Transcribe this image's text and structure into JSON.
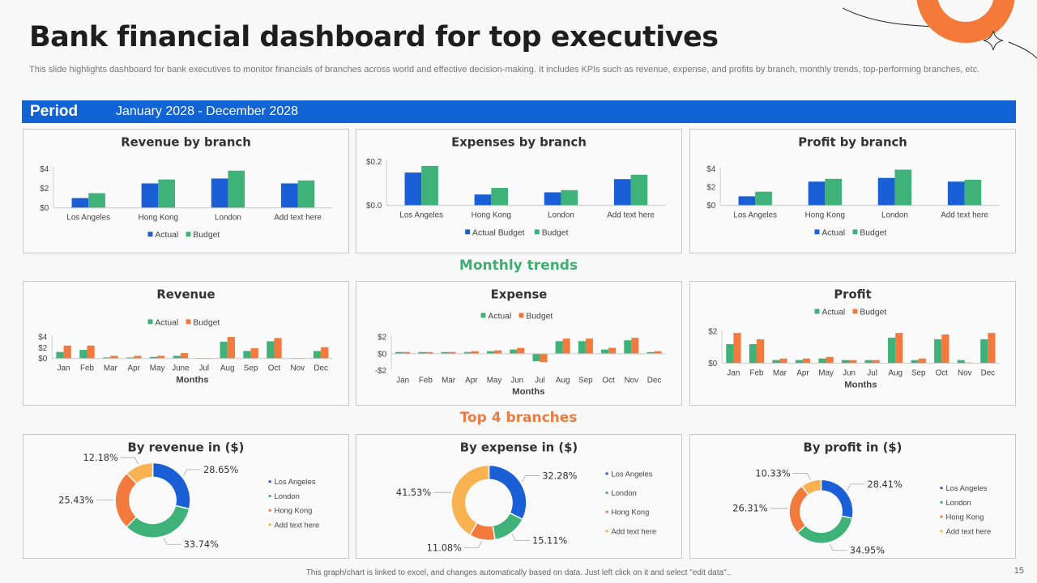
{
  "header": {
    "title": "Bank financial dashboard for top executives",
    "subtitle": "This slide highlights dashboard for bank executives to monitor financials of branches across world and effective decision-making. It includes KPIs such as revenue, expense, and profits by branch, monthly trends, top-performing branches, etc."
  },
  "period": {
    "label": "Period",
    "value": "January 2028 - December 2028"
  },
  "sections": {
    "monthly": "Monthly trends",
    "top": "Top 4 branches"
  },
  "colors": {
    "blue": "#1a5fd6",
    "green": "#3fb27a",
    "orange": "#f37a3c",
    "yellow": "#f9b24f",
    "monthly_title": "#3fae73",
    "top_title": "#ea7d45",
    "period_bar": "#1263d6"
  },
  "footer": {
    "note": "This graph/chart is linked to excel, and changes automatically based on data. Just left click on it and select \"edit data\"..",
    "page": "15"
  },
  "chart_data": [
    {
      "id": "revenue-by-branch",
      "type": "bar",
      "title": "Revenue by branch",
      "categories": [
        "Los Angeles",
        "Hong Kong",
        "London",
        "Add text here"
      ],
      "series": [
        {
          "name": "Actual",
          "color": "#1a5fd6",
          "values": [
            1.0,
            2.5,
            3.0,
            2.5
          ]
        },
        {
          "name": "Budget",
          "color": "#3fb27a",
          "values": [
            1.5,
            2.9,
            3.8,
            2.8
          ]
        }
      ],
      "ylim": [
        0,
        4
      ],
      "yticks": [
        "$0",
        "$2",
        "$4"
      ],
      "ytick_values": [
        0,
        2,
        4
      ],
      "legend": "bottom",
      "xlabel": "",
      "ylabel": ""
    },
    {
      "id": "expenses-by-branch",
      "type": "bar",
      "title": "Expenses by branch",
      "categories": [
        "Los Angeles",
        "Hong Kong",
        "London",
        "Add text here"
      ],
      "series": [
        {
          "name": "Actual Budget",
          "color": "#1a5fd6",
          "values": [
            0.15,
            0.05,
            0.06,
            0.12
          ]
        },
        {
          "name": "Budget",
          "color": "#3fb27a",
          "values": [
            0.18,
            0.08,
            0.07,
            0.14
          ]
        }
      ],
      "ylim": [
        0,
        0.2
      ],
      "yticks": [
        "$0.0",
        "$0.2"
      ],
      "ytick_values": [
        0,
        0.2
      ],
      "legend": "bottom",
      "xlabel": "",
      "ylabel": ""
    },
    {
      "id": "profit-by-branch",
      "type": "bar",
      "title": "Profit by branch",
      "categories": [
        "Los Angeles",
        "Hong Kong",
        "London",
        "Add text here"
      ],
      "series": [
        {
          "name": "Actual",
          "color": "#1a5fd6",
          "values": [
            1.0,
            2.6,
            3.0,
            2.6
          ]
        },
        {
          "name": "Budget",
          "color": "#3fb27a",
          "values": [
            1.5,
            2.9,
            3.9,
            2.8
          ]
        }
      ],
      "ylim": [
        0,
        4
      ],
      "yticks": [
        "$0",
        "$2",
        "$4"
      ],
      "ytick_values": [
        0,
        2,
        4
      ],
      "legend": "bottom",
      "xlabel": "",
      "ylabel": ""
    },
    {
      "id": "monthly-revenue",
      "type": "bar",
      "title": "Revenue",
      "categories": [
        "Jan",
        "Feb",
        "Mar",
        "Apr",
        "May",
        "June",
        "Jul",
        "Aug",
        "Sep",
        "Oct",
        "Nov",
        "Dec"
      ],
      "series": [
        {
          "name": "Actual",
          "color": "#3fb27a",
          "values": [
            1.2,
            1.6,
            0.2,
            0.2,
            0.3,
            0.5,
            0.1,
            3.1,
            1.4,
            3.2,
            0.1,
            1.4
          ]
        },
        {
          "name": "Budget",
          "color": "#f37a3c",
          "values": [
            2.4,
            2.4,
            0.5,
            0.5,
            0.5,
            1.0,
            0.1,
            4.0,
            1.9,
            3.8,
            0.1,
            2.1
          ]
        }
      ],
      "ylim": [
        0,
        4
      ],
      "yticks": [
        "$0",
        "$2",
        "$4"
      ],
      "ytick_values": [
        0,
        2,
        4
      ],
      "legend": "top",
      "xlabel": "Months",
      "ylabel": ""
    },
    {
      "id": "monthly-expense",
      "type": "bar",
      "title": "Expense",
      "categories": [
        "Jan",
        "Feb",
        "Mar",
        "Apr",
        "May",
        "Jun",
        "Jul",
        "Aug",
        "Sep",
        "Oct",
        "Nov",
        "Dec"
      ],
      "series": [
        {
          "name": "Actual",
          "color": "#3fb27a",
          "values": [
            0.2,
            0.2,
            0.2,
            0.2,
            0.3,
            0.5,
            -0.9,
            1.5,
            1.5,
            0.5,
            1.6,
            0.2
          ]
        },
        {
          "name": "Budget",
          "color": "#f37a3c",
          "values": [
            0.2,
            0.2,
            0.2,
            0.3,
            0.4,
            0.7,
            -1.0,
            1.8,
            1.8,
            0.7,
            1.9,
            0.3
          ]
        }
      ],
      "ylim": [
        -2,
        2
      ],
      "yticks": [
        "-$2",
        "$0",
        "$2"
      ],
      "ytick_values": [
        -2,
        0,
        2
      ],
      "legend": "top",
      "xlabel": "Months",
      "ylabel": ""
    },
    {
      "id": "monthly-profit",
      "type": "bar",
      "title": "Profit",
      "categories": [
        "Jan",
        "Feb",
        "Mar",
        "Apr",
        "May",
        "Jun",
        "Jul",
        "Aug",
        "Sep",
        "Oct",
        "Nov",
        "Dec"
      ],
      "series": [
        {
          "name": "Actual",
          "color": "#3fb27a",
          "values": [
            1.2,
            1.2,
            0.2,
            0.2,
            0.3,
            0.2,
            0.2,
            1.6,
            0.2,
            1.5,
            0.2,
            1.5
          ]
        },
        {
          "name": "Budget",
          "color": "#f37a3c",
          "values": [
            1.9,
            1.5,
            0.3,
            0.3,
            0.4,
            0.2,
            0.2,
            1.9,
            0.3,
            1.8,
            0.05,
            1.9
          ]
        }
      ],
      "ylim": [
        0,
        2
      ],
      "yticks": [
        "$0",
        "$2"
      ],
      "ytick_values": [
        0,
        2
      ],
      "legend": "top",
      "xlabel": "Months",
      "ylabel": ""
    },
    {
      "id": "top-by-revenue",
      "type": "pie",
      "donut": true,
      "title": "By revenue in ($)",
      "slices": [
        {
          "label": "Los Angeles",
          "value": 28.65,
          "text": "28.65%",
          "color": "#1a5fd6"
        },
        {
          "label": "London",
          "value": 33.74,
          "text": "33.74%",
          "color": "#3fb27a"
        },
        {
          "label": "Hong Kong",
          "value": 25.43,
          "text": "25.43%",
          "color": "#f37a3c"
        },
        {
          "label": "Add text here",
          "value": 12.18,
          "text": "12.18%",
          "color": "#f9b24f"
        }
      ],
      "legend": "right"
    },
    {
      "id": "top-by-expense",
      "type": "pie",
      "donut": true,
      "title": "By expense in ($)",
      "slices": [
        {
          "label": "Los Angeles",
          "value": 32.28,
          "text": "32.28%",
          "color": "#1a5fd6"
        },
        {
          "label": "London",
          "value": 15.11,
          "text": "15.11%",
          "color": "#3fb27a"
        },
        {
          "label": "Hong Kong",
          "value": 11.08,
          "text": "11.08%",
          "color": "#f37a3c"
        },
        {
          "label": "Add text here",
          "value": 41.53,
          "text": "41.53%",
          "color": "#f9b24f"
        }
      ],
      "legend": "right"
    },
    {
      "id": "top-by-profit",
      "type": "pie",
      "donut": true,
      "title": "By profit in ($)",
      "slices": [
        {
          "label": "Los Angeles",
          "value": 28.41,
          "text": "28.41%",
          "color": "#1a5fd6"
        },
        {
          "label": "London",
          "value": 34.95,
          "text": "34.95%",
          "color": "#3fb27a"
        },
        {
          "label": "Hong Kong",
          "value": 26.31,
          "text": "26.31%",
          "color": "#f37a3c"
        },
        {
          "label": "Add text here",
          "value": 10.33,
          "text": "10.33%",
          "color": "#f9b24f"
        }
      ],
      "legend": "right"
    }
  ]
}
